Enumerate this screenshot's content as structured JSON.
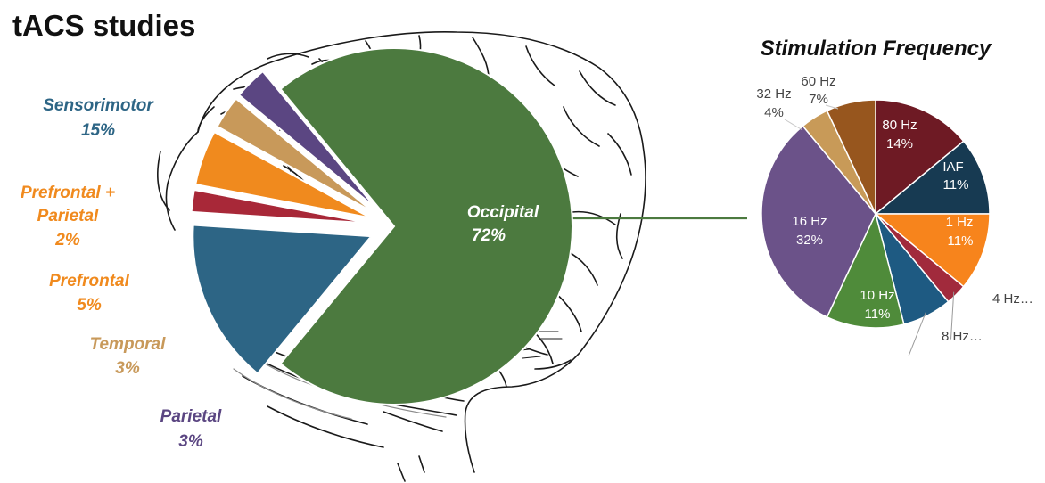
{
  "page_title": "tACS studies",
  "chart_data": [
    {
      "type": "pie",
      "title": "",
      "slices": [
        {
          "label": "Occipital",
          "value": 72,
          "value_label": "72%",
          "color": "#4c7a3f",
          "label_color": "#ffffff",
          "exploded": false
        },
        {
          "label": "Sensorimotor",
          "value": 15,
          "value_label": "15%",
          "color": "#2d6585",
          "label_color": "#2d6585",
          "exploded": true
        },
        {
          "label": "Prefrontal + Parietal",
          "label_lines": [
            "Prefrontal +",
            "Parietal"
          ],
          "value": 2,
          "value_label": "2%",
          "color": "#a82838",
          "label_color": "#a82838",
          "exploded": true
        },
        {
          "label": "Prefrontal",
          "value": 5,
          "value_label": "5%",
          "color": "#f08a1e",
          "label_color": "#f08a1e",
          "exploded": true
        },
        {
          "label": "Temporal",
          "value": 3,
          "value_label": "3%",
          "color": "#c8995a",
          "label_color": "#c8995a",
          "exploded": true
        },
        {
          "label": "Parietal",
          "value": 3,
          "value_label": "3%",
          "color": "#5b4682",
          "label_color": "#5b4682",
          "exploded": true
        }
      ]
    },
    {
      "type": "pie",
      "title": "Stimulation Frequency",
      "slices": [
        {
          "label": "80 Hz",
          "value": 14,
          "value_label": "14%",
          "color": "#6e1a24"
        },
        {
          "label": "IAF",
          "value": 11,
          "value_label": "11%",
          "color": "#173a52"
        },
        {
          "label": "1 Hz",
          "value": 11,
          "value_label": "11%",
          "color": "#f7841c"
        },
        {
          "label": "4 Hz…",
          "value": 3,
          "value_label": "",
          "color": "#a12a3c"
        },
        {
          "label": "8 Hz…",
          "value": 7,
          "value_label": "",
          "color": "#1e5a82"
        },
        {
          "label": "10 Hz",
          "value": 11,
          "value_label": "11%",
          "color": "#4f8b3a"
        },
        {
          "label": "16 Hz",
          "value": 32,
          "value_label": "32%",
          "color": "#6b5289"
        },
        {
          "label": "32 Hz",
          "value": 4,
          "value_label": "4%",
          "color": "#c89a58"
        },
        {
          "label": "60 Hz",
          "value": 7,
          "value_label": "7%",
          "color": "#97561e"
        }
      ]
    }
  ]
}
